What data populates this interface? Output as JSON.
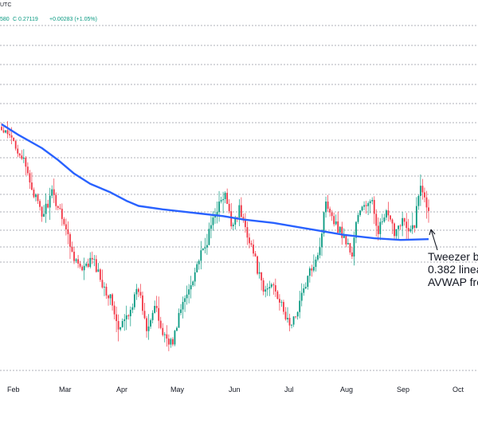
{
  "header": {
    "symbol_tail": "UTC",
    "last_price_tail": "580",
    "close_readout": "C 0.27119",
    "change_readout": "+0.00283 (+1.05%)"
  },
  "colors": {
    "up": "#089981",
    "down": "#f23645",
    "avwap": "#2962ff",
    "grid": "#9598a1",
    "text": "#131722"
  },
  "chart_data": {
    "type": "candlestick",
    "title": "",
    "xlabel": "",
    "ylabel": "",
    "x_tick_labels": [
      "Feb",
      "Mar",
      "Apr",
      "May",
      "Jun",
      "Jul",
      "Aug",
      "Sep",
      "Oct"
    ],
    "ylim": [
      0.19,
      0.41
    ],
    "grid": "dashed horizontal lines",
    "last_close": 0.27119,
    "change": 0.00283,
    "change_percent": 1.05,
    "anchor_points": [
      [
        0,
        0.333
      ],
      [
        6,
        0.327
      ],
      [
        10,
        0.318
      ],
      [
        15,
        0.3
      ],
      [
        20,
        0.283
      ],
      [
        25,
        0.296
      ],
      [
        30,
        0.284
      ],
      [
        35,
        0.262
      ],
      [
        40,
        0.25
      ],
      [
        45,
        0.258
      ],
      [
        50,
        0.244
      ],
      [
        55,
        0.232
      ],
      [
        58,
        0.215
      ],
      [
        62,
        0.224
      ],
      [
        68,
        0.24
      ],
      [
        72,
        0.218
      ],
      [
        76,
        0.23
      ],
      [
        80,
        0.214
      ],
      [
        85,
        0.208
      ],
      [
        88,
        0.225
      ],
      [
        92,
        0.237
      ],
      [
        98,
        0.258
      ],
      [
        101,
        0.264
      ],
      [
        106,
        0.286
      ],
      [
        111,
        0.295
      ],
      [
        114,
        0.278
      ],
      [
        118,
        0.287
      ],
      [
        124,
        0.266
      ],
      [
        130,
        0.238
      ],
      [
        135,
        0.244
      ],
      [
        140,
        0.226
      ],
      [
        144,
        0.218
      ],
      [
        148,
        0.233
      ],
      [
        154,
        0.253
      ],
      [
        158,
        0.265
      ],
      [
        161,
        0.293
      ],
      [
        163,
        0.287
      ],
      [
        166,
        0.278
      ],
      [
        170,
        0.271
      ],
      [
        174,
        0.26
      ],
      [
        176,
        0.28
      ],
      [
        180,
        0.29
      ],
      [
        184,
        0.29
      ],
      [
        187,
        0.275
      ],
      [
        191,
        0.284
      ],
      [
        195,
        0.274
      ],
      [
        199,
        0.282
      ],
      [
        202,
        0.272
      ],
      [
        205,
        0.279
      ],
      [
        206,
        0.287
      ],
      [
        208,
        0.302
      ],
      [
        210,
        0.296
      ],
      [
        212,
        0.286
      ]
    ],
    "avwap": {
      "name": "",
      "points": [
        [
          0,
          0.337
        ],
        [
          8,
          0.331
        ],
        [
          20,
          0.323
        ],
        [
          28,
          0.316
        ],
        [
          36,
          0.308
        ],
        [
          44,
          0.302
        ],
        [
          54,
          0.297
        ],
        [
          62,
          0.292
        ],
        [
          68,
          0.289
        ],
        [
          80,
          0.287
        ],
        [
          95,
          0.285
        ],
        [
          110,
          0.283
        ],
        [
          120,
          0.281
        ],
        [
          135,
          0.279
        ],
        [
          150,
          0.276
        ],
        [
          160,
          0.274
        ],
        [
          170,
          0.272
        ],
        [
          185,
          0.27
        ],
        [
          198,
          0.269
        ],
        [
          212,
          0.2695
        ]
      ]
    },
    "annotation": {
      "lines": [
        "Tweezer be",
        "0.382 linea",
        "AVWAP fro"
      ],
      "points_to_bar": 212
    }
  }
}
